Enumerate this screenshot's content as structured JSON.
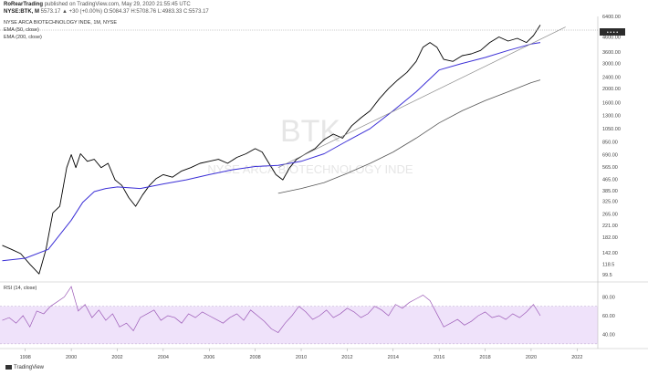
{
  "header": {
    "user": "RoRearTrading",
    "published": "published on TradingView.com, May 29, 2020 21:55:45 UTC",
    "symbol": "NYSE:BTK, M",
    "ohlc": "5573.17 ▲ +30 (+0.00%) O:5084.37 H:5708.76 L:4983.33 C:5573.17"
  },
  "watermark": {
    "ticker": "BTK",
    "name": "NYSE ARCA BIOTECHNOLOGY INDE"
  },
  "brand": "TradingView",
  "last_price_label": "• • • •",
  "chart_data": [
    {
      "type": "line",
      "title": "NYSE ARCA BIOTECHNOLOGY INDE, 1M, NYSE",
      "x_ticks": [
        "1998",
        "2000",
        "2002",
        "2004",
        "2006",
        "2008",
        "2010",
        "2012",
        "2014",
        "2016",
        "2018",
        "2020",
        "2022"
      ],
      "y_ticks": [
        6400,
        4600,
        3600,
        3000,
        2400,
        2000,
        1600,
        1300,
        1050,
        850,
        690,
        565,
        465,
        385,
        325,
        265,
        221,
        182,
        142,
        118.5,
        99.5
      ],
      "y_scale": "log",
      "ylim": [
        90,
        6400
      ],
      "series": [
        {
          "name": "",
          "color": "#000000",
          "x": [
            1997.0,
            1997.4,
            1997.8,
            1998.2,
            1998.6,
            1998.9,
            1999.2,
            1999.5,
            1999.8,
            2000.0,
            2000.2,
            2000.4,
            2000.7,
            2001.0,
            2001.3,
            2001.6,
            2001.9,
            2002.2,
            2002.5,
            2002.8,
            2003.1,
            2003.4,
            2003.7,
            2004.0,
            2004.4,
            2004.8,
            2005.2,
            2005.6,
            2006.0,
            2006.4,
            2006.8,
            2007.2,
            2007.6,
            2008.0,
            2008.3,
            2008.6,
            2008.9,
            2009.2,
            2009.5,
            2009.8,
            2010.2,
            2010.6,
            2011.0,
            2011.4,
            2011.8,
            2012.2,
            2012.6,
            2013.0,
            2013.4,
            2013.8,
            2014.2,
            2014.6,
            2015.0,
            2015.3,
            2015.6,
            2015.9,
            2016.2,
            2016.6,
            2017.0,
            2017.4,
            2017.8,
            2018.2,
            2018.6,
            2019.0,
            2019.4,
            2019.8,
            2020.1,
            2020.4
          ],
          "y": [
            160,
            150,
            140,
            118,
            101,
            150,
            270,
            300,
            560,
            690,
            560,
            700,
            620,
            640,
            560,
            600,
            460,
            420,
            345,
            300,
            360,
            420,
            470,
            500,
            480,
            530,
            560,
            600,
            620,
            640,
            600,
            660,
            700,
            760,
            720,
            600,
            500,
            460,
            560,
            640,
            700,
            760,
            880,
            960,
            900,
            1100,
            1250,
            1400,
            1700,
            2000,
            2300,
            2600,
            3100,
            3900,
            4200,
            3900,
            3200,
            3100,
            3400,
            3500,
            3700,
            4200,
            4600,
            4300,
            4500,
            4200,
            4700,
            5573
          ]
        },
        {
          "name": "EMA (50, close)",
          "color": "#3b2fd6",
          "x": [
            1997.0,
            1998.0,
            1999.0,
            2000.0,
            2000.5,
            2001.0,
            2001.5,
            2002.0,
            2003.0,
            2004.0,
            2005.0,
            2006.0,
            2007.0,
            2008.0,
            2009.0,
            2010.0,
            2011.0,
            2012.0,
            2013.0,
            2014.0,
            2015.0,
            2016.0,
            2017.0,
            2018.0,
            2019.0,
            2020.0,
            2020.4
          ],
          "y": [
            125,
            130,
            150,
            240,
            320,
            380,
            400,
            410,
            400,
            430,
            460,
            500,
            540,
            570,
            580,
            620,
            700,
            860,
            1050,
            1400,
            1900,
            2700,
            3000,
            3300,
            3700,
            4100,
            4200
          ]
        },
        {
          "name": "EMA (200, close)",
          "color": "#555555",
          "x": [
            2009.0,
            2010.0,
            2011.0,
            2012.0,
            2013.0,
            2014.0,
            2015.0,
            2016.0,
            2017.0,
            2018.0,
            2019.0,
            2020.0,
            2020.4
          ],
          "y": [
            370,
            400,
            440,
            510,
            600,
            720,
            900,
            1150,
            1400,
            1650,
            1900,
            2200,
            2300
          ]
        },
        {
          "name": "",
          "color": "#888888",
          "x": [
            2009.0,
            2021.5
          ],
          "y": [
            560,
            5400
          ]
        }
      ]
    },
    {
      "type": "line",
      "title": "RSI (14, close)",
      "ylim": [
        25,
        95
      ],
      "y_ticks": [
        80,
        60,
        40
      ],
      "band": [
        30,
        70
      ],
      "series": [
        {
          "name": "",
          "color": "#9b59b6",
          "x": [
            1997.0,
            1997.3,
            1997.6,
            1997.9,
            1998.2,
            1998.5,
            1998.8,
            1999.1,
            1999.4,
            1999.7,
            2000.0,
            2000.3,
            2000.6,
            2000.9,
            2001.2,
            2001.5,
            2001.8,
            2002.1,
            2002.4,
            2002.7,
            2003.0,
            2003.3,
            2003.6,
            2003.9,
            2004.2,
            2004.5,
            2004.8,
            2005.1,
            2005.4,
            2005.7,
            2006.0,
            2006.3,
            2006.6,
            2006.9,
            2007.2,
            2007.5,
            2007.8,
            2008.1,
            2008.4,
            2008.7,
            2009.0,
            2009.3,
            2009.6,
            2009.9,
            2010.2,
            2010.5,
            2010.8,
            2011.1,
            2011.4,
            2011.7,
            2012.0,
            2012.3,
            2012.6,
            2012.9,
            2013.2,
            2013.5,
            2013.8,
            2014.1,
            2014.4,
            2014.7,
            2015.0,
            2015.3,
            2015.6,
            2015.9,
            2016.2,
            2016.5,
            2016.8,
            2017.1,
            2017.4,
            2017.7,
            2018.0,
            2018.3,
            2018.6,
            2018.9,
            2019.2,
            2019.5,
            2019.8,
            2020.1,
            2020.4
          ],
          "y": [
            55,
            58,
            52,
            60,
            48,
            65,
            62,
            70,
            75,
            80,
            91,
            65,
            72,
            58,
            66,
            55,
            62,
            48,
            52,
            44,
            58,
            62,
            66,
            55,
            60,
            58,
            52,
            62,
            58,
            64,
            60,
            56,
            52,
            58,
            62,
            55,
            66,
            60,
            54,
            46,
            42,
            52,
            60,
            70,
            64,
            56,
            60,
            66,
            58,
            62,
            68,
            64,
            58,
            62,
            70,
            66,
            60,
            72,
            68,
            74,
            78,
            82,
            76,
            62,
            48,
            52,
            56,
            50,
            54,
            60,
            64,
            58,
            60,
            56,
            62,
            58,
            64,
            72,
            60
          ]
        }
      ]
    }
  ]
}
